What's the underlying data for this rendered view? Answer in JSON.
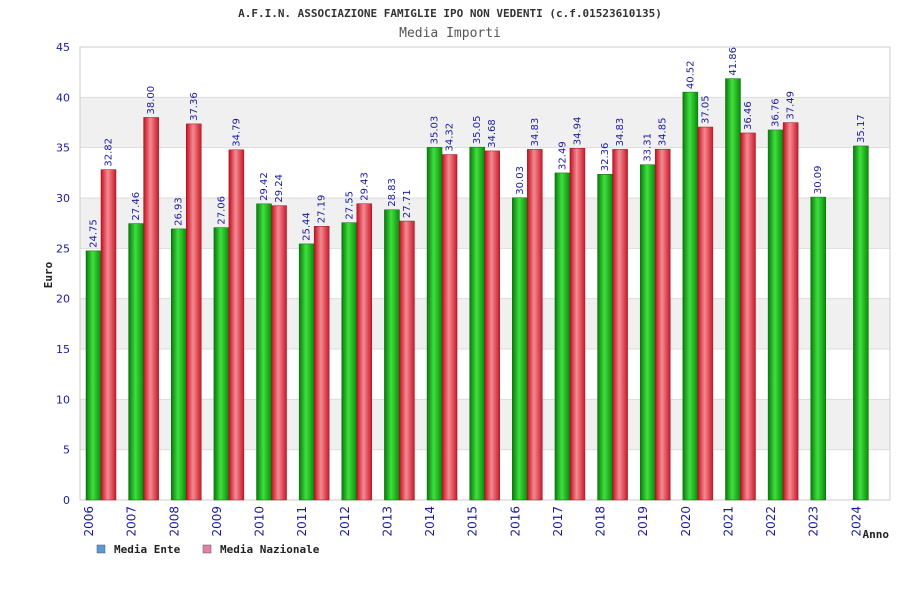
{
  "chart_data": {
    "type": "bar",
    "title": "A.F.I.N. ASSOCIAZIONE FAMIGLIE IPO NON VEDENTI (c.f.01523610135)",
    "subtitle": "Media Importi",
    "xlabel": "Anno",
    "ylabel": "Euro",
    "ylim": [
      0,
      45
    ],
    "yticks": [
      0,
      5,
      10,
      15,
      20,
      25,
      30,
      35,
      40,
      45
    ],
    "grid": true,
    "legend_position": "bottom-left",
    "categories": [
      "2006",
      "2007",
      "2008",
      "2009",
      "2010",
      "2011",
      "2012",
      "2013",
      "2014",
      "2015",
      "2016",
      "2017",
      "2018",
      "2019",
      "2020",
      "2021",
      "2022",
      "2023",
      "2024"
    ],
    "series": [
      {
        "name": "Media Ente",
        "legend_color": "#5b9bd5",
        "bar_color": "#1fb51f",
        "values": [
          24.75,
          27.46,
          26.93,
          27.06,
          29.42,
          25.44,
          27.55,
          28.83,
          35.03,
          35.05,
          30.03,
          32.49,
          32.36,
          33.31,
          40.52,
          41.86,
          36.76,
          30.09,
          35.17
        ],
        "labels": [
          "24.75",
          "27.46",
          "26.93",
          "27.06",
          "29.42",
          "25.44",
          "27.55",
          "28.83",
          "35.03",
          "35.05",
          "30.03",
          "32.49",
          "32.36",
          "33.31",
          "40.52",
          "41.86",
          "36.76",
          "30.09",
          "35.17"
        ]
      },
      {
        "name": "Media Nazionale",
        "legend_color": "#e67fa8",
        "bar_color": "#e8313c",
        "values": [
          32.82,
          38.0,
          37.36,
          34.79,
          29.24,
          27.19,
          29.43,
          27.71,
          34.32,
          34.68,
          34.83,
          34.94,
          34.83,
          34.85,
          37.05,
          36.46,
          37.49,
          null,
          null
        ],
        "labels": [
          "32.82",
          "38.00",
          "37.36",
          "34.79",
          "29.24",
          "27.19",
          "29.43",
          "27.71",
          "34.32",
          "34.68",
          "34.83",
          "34.94",
          "34.83",
          "34.85",
          "37.05",
          "36.46",
          "37.49",
          null,
          null
        ]
      }
    ]
  }
}
